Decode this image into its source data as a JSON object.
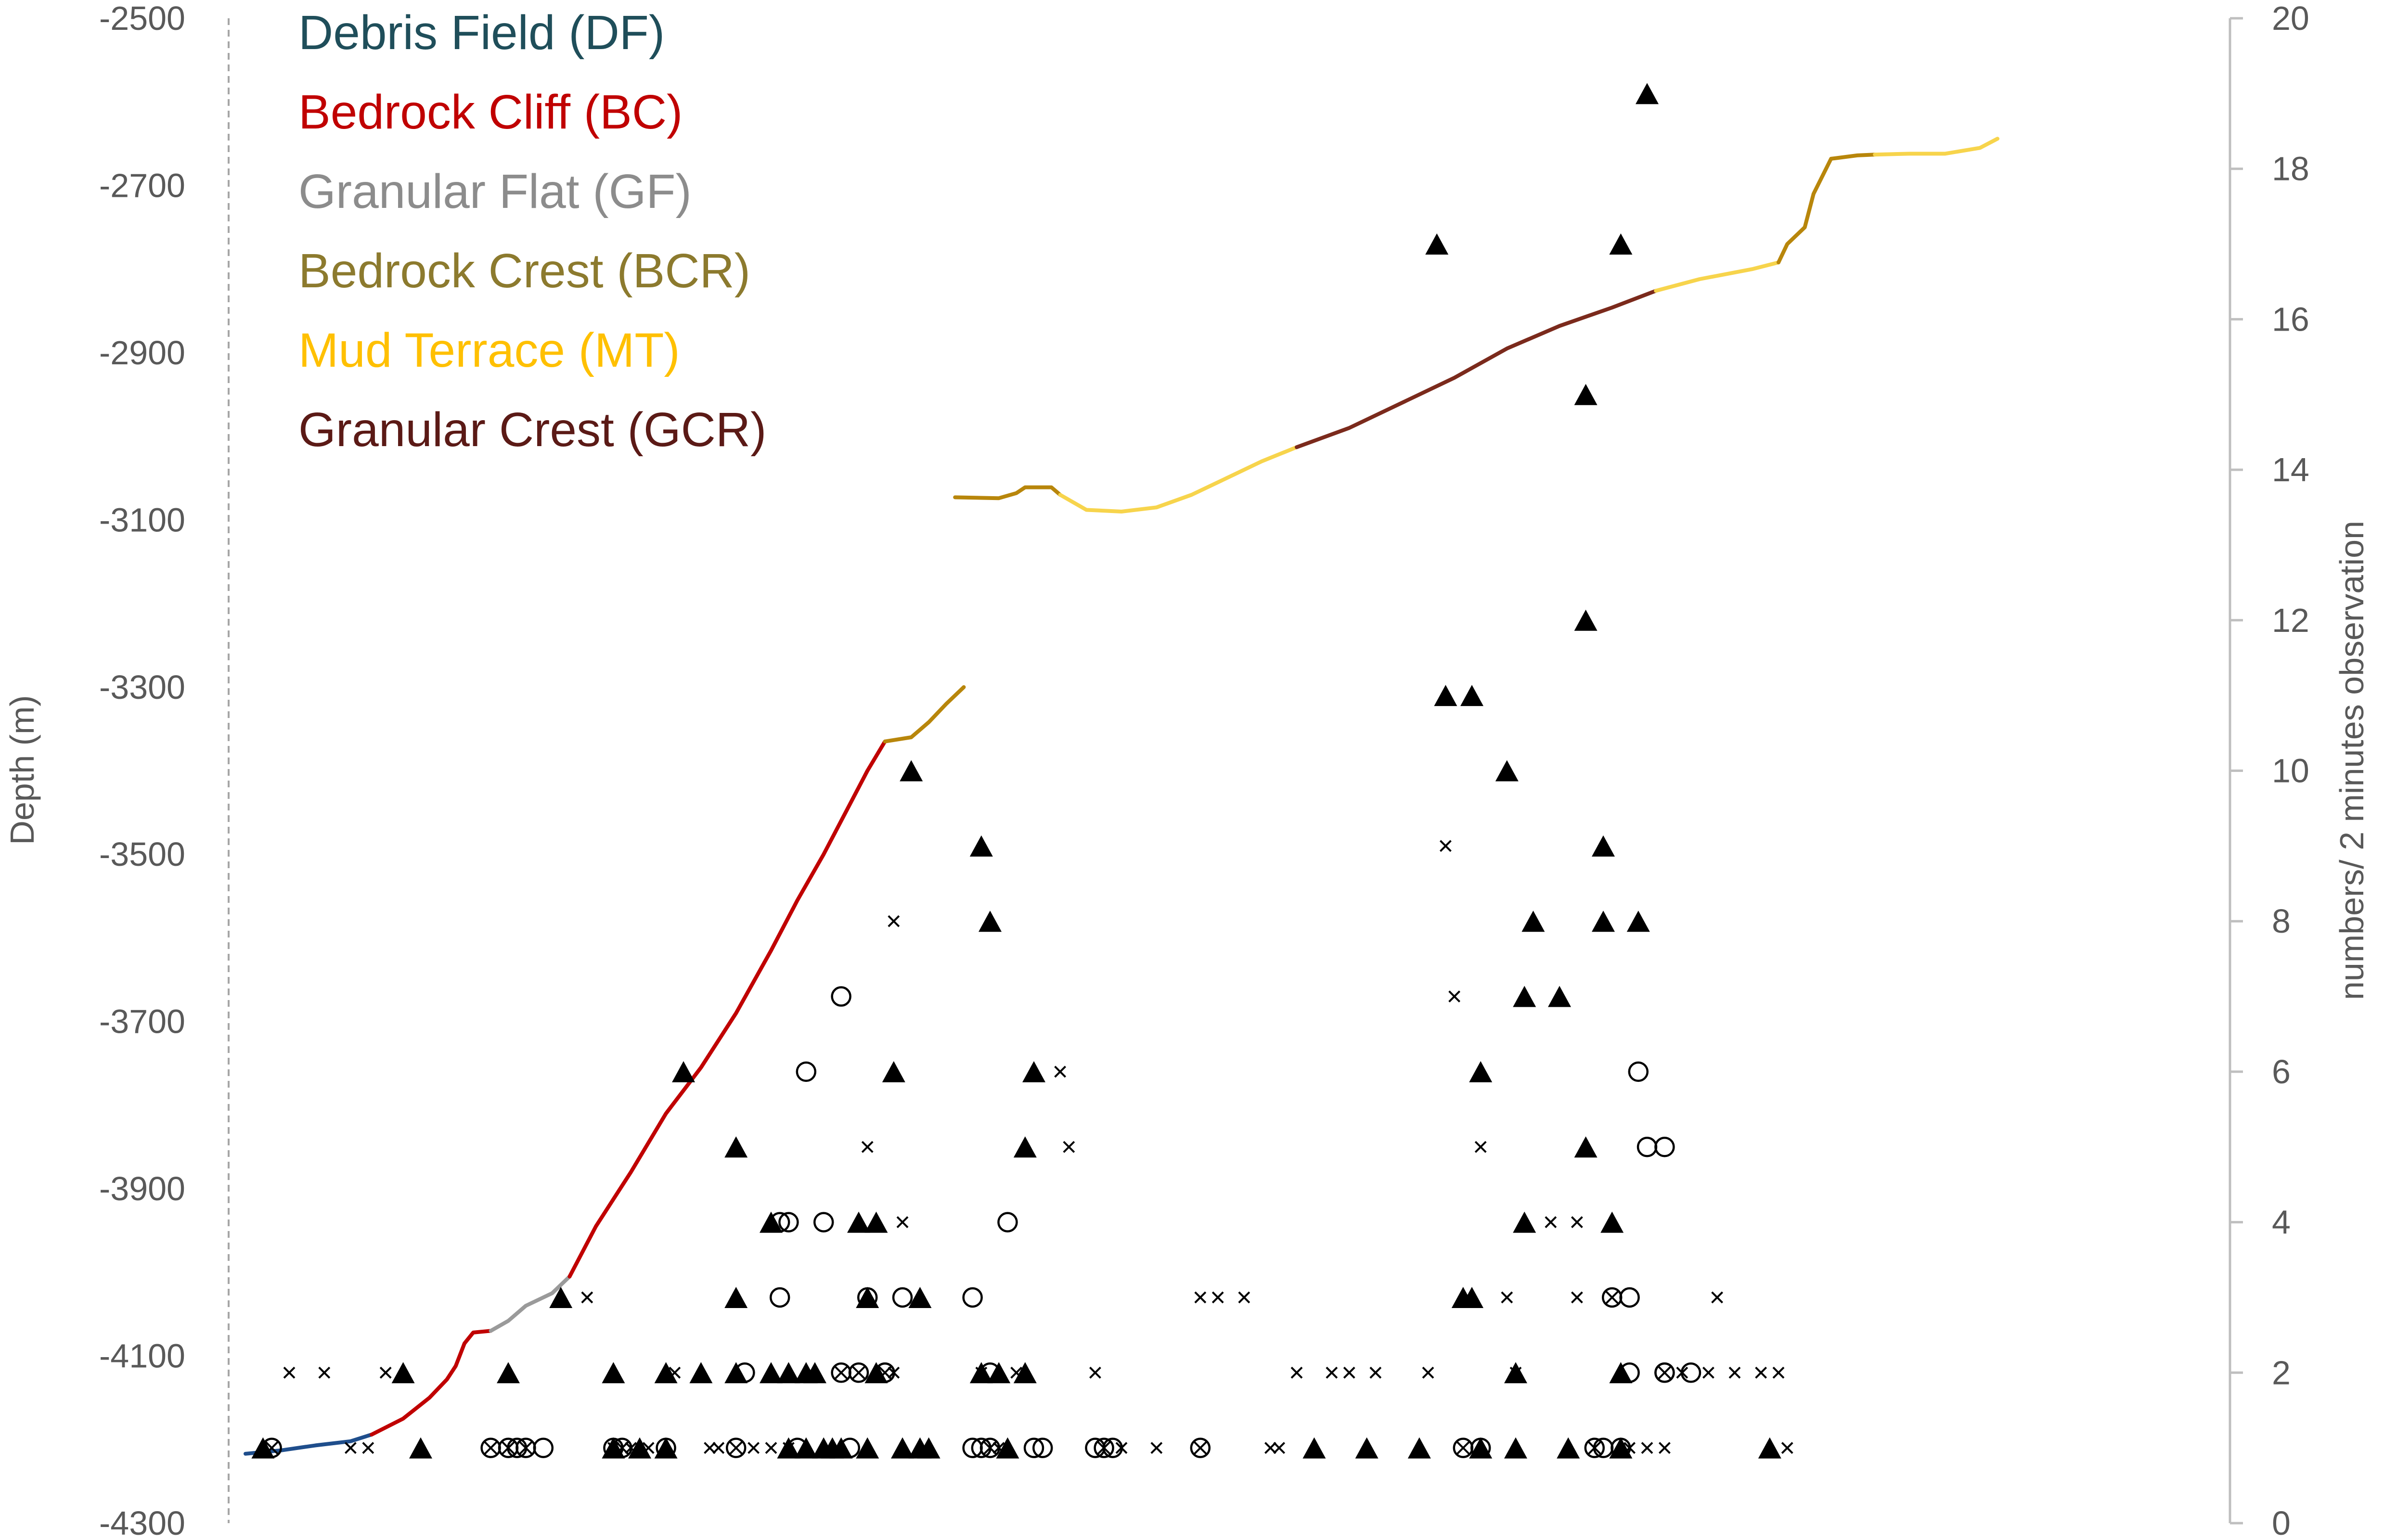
{
  "chart_data": {
    "type": "scatter",
    "title": "",
    "y_left": {
      "label": "Depth (m)",
      "range": [
        -4300,
        -2500
      ],
      "ticks": [
        -2500,
        -2700,
        -2900,
        -3100,
        -3300,
        -3500,
        -3700,
        -3900,
        -4100,
        -4300
      ]
    },
    "y_right": {
      "label": "numbers/ 2 minutes observation",
      "range": [
        0,
        20
      ],
      "ticks": [
        0,
        2,
        4,
        6,
        8,
        10,
        12,
        14,
        16,
        18,
        20
      ]
    },
    "x_axis": {
      "label": "",
      "range": [
        0,
        100
      ],
      "visible": false
    },
    "legend": {
      "placement": "top-left",
      "entries": [
        {
          "label": "Debris Field (DF)",
          "color": "#1f4e5a"
        },
        {
          "label": "Bedrock Cliff (BC)",
          "color": "#c00000"
        },
        {
          "label": "Granular Flat (GF)",
          "color": "#8c8c8c"
        },
        {
          "label": "Bedrock Crest (BCR)",
          "color": "#8c7a2e"
        },
        {
          "label": "Mud Terrace (MT)",
          "color": "#ffc000"
        },
        {
          "label": "Granular Crest (GCR)",
          "color": "#5b1a16"
        }
      ]
    },
    "depth_profile": [
      {
        "segment": "DF",
        "color": "#1f4e8c",
        "points": [
          [
            0,
            -4217
          ],
          [
            2,
            -4213
          ],
          [
            4,
            -4207
          ],
          [
            6,
            -4202
          ],
          [
            7.2,
            -4194
          ]
        ]
      },
      {
        "segment": "BC",
        "color": "#c00000",
        "points": [
          [
            7.2,
            -4194
          ],
          [
            9,
            -4175
          ],
          [
            10.5,
            -4150
          ],
          [
            11.5,
            -4128
          ],
          [
            12,
            -4112
          ],
          [
            12.5,
            -4085
          ],
          [
            13,
            -4072
          ],
          [
            14,
            -4070
          ]
        ]
      },
      {
        "segment": "GF",
        "color": "#9a9a9a",
        "points": [
          [
            14,
            -4070
          ],
          [
            15,
            -4058
          ],
          [
            16,
            -4040
          ],
          [
            17.5,
            -4025
          ],
          [
            18.5,
            -4005
          ]
        ]
      },
      {
        "segment": "BC",
        "color": "#c00000",
        "points": [
          [
            18.5,
            -4005
          ],
          [
            20,
            -3945
          ],
          [
            22,
            -3880
          ],
          [
            24,
            -3810
          ],
          [
            26,
            -3755
          ],
          [
            28,
            -3690
          ],
          [
            30,
            -3615
          ],
          [
            31.5,
            -3555
          ],
          [
            33,
            -3500
          ],
          [
            34.5,
            -3440
          ],
          [
            35.5,
            -3400
          ],
          [
            36.5,
            -3365
          ]
        ]
      },
      {
        "segment": "BCR",
        "color": "#b8860b",
        "points": [
          [
            36.5,
            -3365
          ],
          [
            38,
            -3360
          ],
          [
            39,
            -3342
          ],
          [
            40,
            -3320
          ],
          [
            41,
            -3300
          ]
        ]
      },
      {
        "segment": "BCR",
        "color": "#b8860b",
        "points": [
          [
            40.5,
            -3073
          ],
          [
            43,
            -3074
          ],
          [
            44,
            -3068
          ],
          [
            44.5,
            -3061
          ],
          [
            46,
            -3061
          ],
          [
            46.5,
            -3070
          ]
        ]
      },
      {
        "segment": "MT",
        "color": "#f7d44c",
        "points": [
          [
            46.5,
            -3070
          ],
          [
            48,
            -3088
          ],
          [
            50,
            -3090
          ],
          [
            52,
            -3085
          ],
          [
            54,
            -3070
          ],
          [
            56,
            -3050
          ],
          [
            58,
            -3030
          ],
          [
            60,
            -3013
          ]
        ]
      },
      {
        "segment": "GCR",
        "color": "#7b2a1c",
        "points": [
          [
            60,
            -3013
          ],
          [
            63,
            -2990
          ],
          [
            66,
            -2960
          ],
          [
            69,
            -2930
          ],
          [
            72,
            -2895
          ],
          [
            75,
            -2868
          ],
          [
            78,
            -2846
          ],
          [
            80.5,
            -2826
          ]
        ]
      },
      {
        "segment": "MT",
        "color": "#f7d44c",
        "points": [
          [
            80.5,
            -2826
          ],
          [
            83,
            -2812
          ],
          [
            86,
            -2800
          ],
          [
            87.5,
            -2792
          ]
        ]
      },
      {
        "segment": "BCR",
        "color": "#b8860b",
        "points": [
          [
            87.5,
            -2792
          ],
          [
            88,
            -2770
          ],
          [
            89,
            -2750
          ],
          [
            89.5,
            -2710
          ],
          [
            90.5,
            -2668
          ],
          [
            92,
            -2664
          ],
          [
            93,
            -2663
          ]
        ]
      },
      {
        "segment": "MT",
        "color": "#f7d44c",
        "points": [
          [
            93,
            -2663
          ],
          [
            95,
            -2662
          ],
          [
            97,
            -2662
          ],
          [
            99,
            -2655
          ],
          [
            100,
            -2644
          ]
        ]
      }
    ],
    "series": [
      {
        "name": "",
        "marker": "triangle-filled",
        "points": [
          [
            1,
            1
          ],
          [
            9,
            2
          ],
          [
            10,
            1
          ],
          [
            15,
            2
          ],
          [
            18,
            3
          ],
          [
            21,
            1
          ],
          [
            21,
            2
          ],
          [
            22.5,
            1
          ],
          [
            24,
            1
          ],
          [
            24,
            2
          ],
          [
            25,
            6
          ],
          [
            26,
            2
          ],
          [
            28,
            5
          ],
          [
            28,
            2
          ],
          [
            28,
            3
          ],
          [
            30,
            4
          ],
          [
            30,
            2
          ],
          [
            31,
            2
          ],
          [
            31,
            1
          ],
          [
            32,
            1
          ],
          [
            32,
            2
          ],
          [
            32.5,
            2
          ],
          [
            33,
            1
          ],
          [
            33.5,
            1
          ],
          [
            34,
            1
          ],
          [
            35,
            4
          ],
          [
            35.5,
            1
          ],
          [
            35.5,
            3
          ],
          [
            36,
            4
          ],
          [
            36,
            2
          ],
          [
            37.5,
            1
          ],
          [
            37,
            6
          ],
          [
            38,
            10
          ],
          [
            38.5,
            3
          ],
          [
            38.5,
            1
          ],
          [
            39,
            1
          ],
          [
            42,
            2
          ],
          [
            42,
            9
          ],
          [
            42.5,
            8
          ],
          [
            43,
            2
          ],
          [
            43.5,
            1
          ],
          [
            44.5,
            5
          ],
          [
            44.5,
            2
          ],
          [
            45,
            6
          ],
          [
            61,
            1
          ],
          [
            64,
            1
          ],
          [
            67,
            1
          ],
          [
            69.5,
            3
          ],
          [
            70,
            3
          ],
          [
            70.5,
            1
          ],
          [
            70.5,
            6
          ],
          [
            72.5,
            1
          ],
          [
            72.5,
            2
          ],
          [
            73,
            7
          ],
          [
            73,
            4
          ],
          [
            73.5,
            8
          ],
          [
            68,
            17
          ],
          [
            68.5,
            11
          ],
          [
            70,
            11
          ],
          [
            72,
            10
          ],
          [
            75,
            7
          ],
          [
            75.5,
            1
          ],
          [
            76.5,
            15
          ],
          [
            76.5,
            12
          ],
          [
            76.5,
            5
          ],
          [
            77.5,
            9
          ],
          [
            77.5,
            8
          ],
          [
            78,
            4
          ],
          [
            78.5,
            17
          ],
          [
            78.5,
            2
          ],
          [
            78.5,
            1
          ],
          [
            80,
            19
          ],
          [
            79.5,
            8
          ],
          [
            87,
            1
          ]
        ]
      },
      {
        "name": "",
        "marker": "circle-open",
        "points": [
          [
            15.5,
            1
          ],
          [
            17,
            1
          ],
          [
            21,
            1
          ],
          [
            24,
            1
          ],
          [
            28.5,
            2
          ],
          [
            30.5,
            3
          ],
          [
            31.5,
            1
          ],
          [
            30.5,
            4
          ],
          [
            31,
            4
          ],
          [
            32,
            6
          ],
          [
            33,
            4
          ],
          [
            34,
            7
          ],
          [
            34.5,
            1
          ],
          [
            35.5,
            3
          ],
          [
            36.5,
            2
          ],
          [
            37.5,
            3
          ],
          [
            41.5,
            3
          ],
          [
            41.5,
            1
          ],
          [
            42,
            1
          ],
          [
            42.5,
            2
          ],
          [
            43.5,
            4
          ],
          [
            45,
            1
          ],
          [
            45.5,
            1
          ],
          [
            48.5,
            1
          ],
          [
            49.5,
            1
          ],
          [
            70.5,
            1
          ],
          [
            77.5,
            1
          ],
          [
            78.5,
            1
          ],
          [
            79,
            2
          ],
          [
            79,
            3
          ],
          [
            79.5,
            6
          ],
          [
            80,
            5
          ],
          [
            81,
            5
          ],
          [
            81,
            2
          ],
          [
            82.5,
            2
          ]
        ]
      },
      {
        "name": "",
        "marker": "circle-cross",
        "points": [
          [
            1.5,
            1
          ],
          [
            14,
            1
          ],
          [
            15,
            1
          ],
          [
            16,
            1
          ],
          [
            21.5,
            1
          ],
          [
            28,
            1
          ],
          [
            34,
            2
          ],
          [
            35,
            2
          ],
          [
            36.5,
            2
          ],
          [
            42.5,
            1
          ],
          [
            49,
            1
          ],
          [
            54.5,
            1
          ],
          [
            69.5,
            1
          ],
          [
            77,
            1
          ],
          [
            78,
            3
          ],
          [
            81,
            2
          ]
        ]
      },
      {
        "name": "",
        "marker": "cross",
        "points": [
          [
            2.5,
            2
          ],
          [
            4.5,
            2
          ],
          [
            6,
            1
          ],
          [
            7,
            1
          ],
          [
            8,
            2
          ],
          [
            19.5,
            3
          ],
          [
            21,
            1
          ],
          [
            22,
            1
          ],
          [
            23,
            1
          ],
          [
            24.5,
            2
          ],
          [
            26.5,
            1
          ],
          [
            27,
            1
          ],
          [
            29,
            1
          ],
          [
            30,
            1
          ],
          [
            31,
            1
          ],
          [
            35.5,
            5
          ],
          [
            37,
            8
          ],
          [
            37.5,
            4
          ],
          [
            37,
            2
          ],
          [
            42,
            2
          ],
          [
            43,
            1
          ],
          [
            44,
            2
          ],
          [
            46.5,
            6
          ],
          [
            47,
            5
          ],
          [
            48.5,
            2
          ],
          [
            50,
            1
          ],
          [
            52,
            1
          ],
          [
            54.5,
            3
          ],
          [
            55.5,
            3
          ],
          [
            57,
            3
          ],
          [
            58.5,
            1
          ],
          [
            59,
            1
          ],
          [
            60,
            2
          ],
          [
            62,
            2
          ],
          [
            63,
            2
          ],
          [
            64.5,
            2
          ],
          [
            67.5,
            2
          ],
          [
            68.5,
            9
          ],
          [
            69,
            7
          ],
          [
            70.5,
            5
          ],
          [
            72,
            3
          ],
          [
            72.5,
            2
          ],
          [
            74.5,
            4
          ],
          [
            76,
            4
          ],
          [
            76,
            3
          ],
          [
            79,
            1
          ],
          [
            80,
            1
          ],
          [
            81,
            1
          ],
          [
            82,
            2
          ],
          [
            83.5,
            2
          ],
          [
            84,
            3
          ],
          [
            85,
            2
          ],
          [
            86.5,
            2
          ],
          [
            87.5,
            2
          ],
          [
            88,
            1
          ]
        ]
      }
    ]
  }
}
